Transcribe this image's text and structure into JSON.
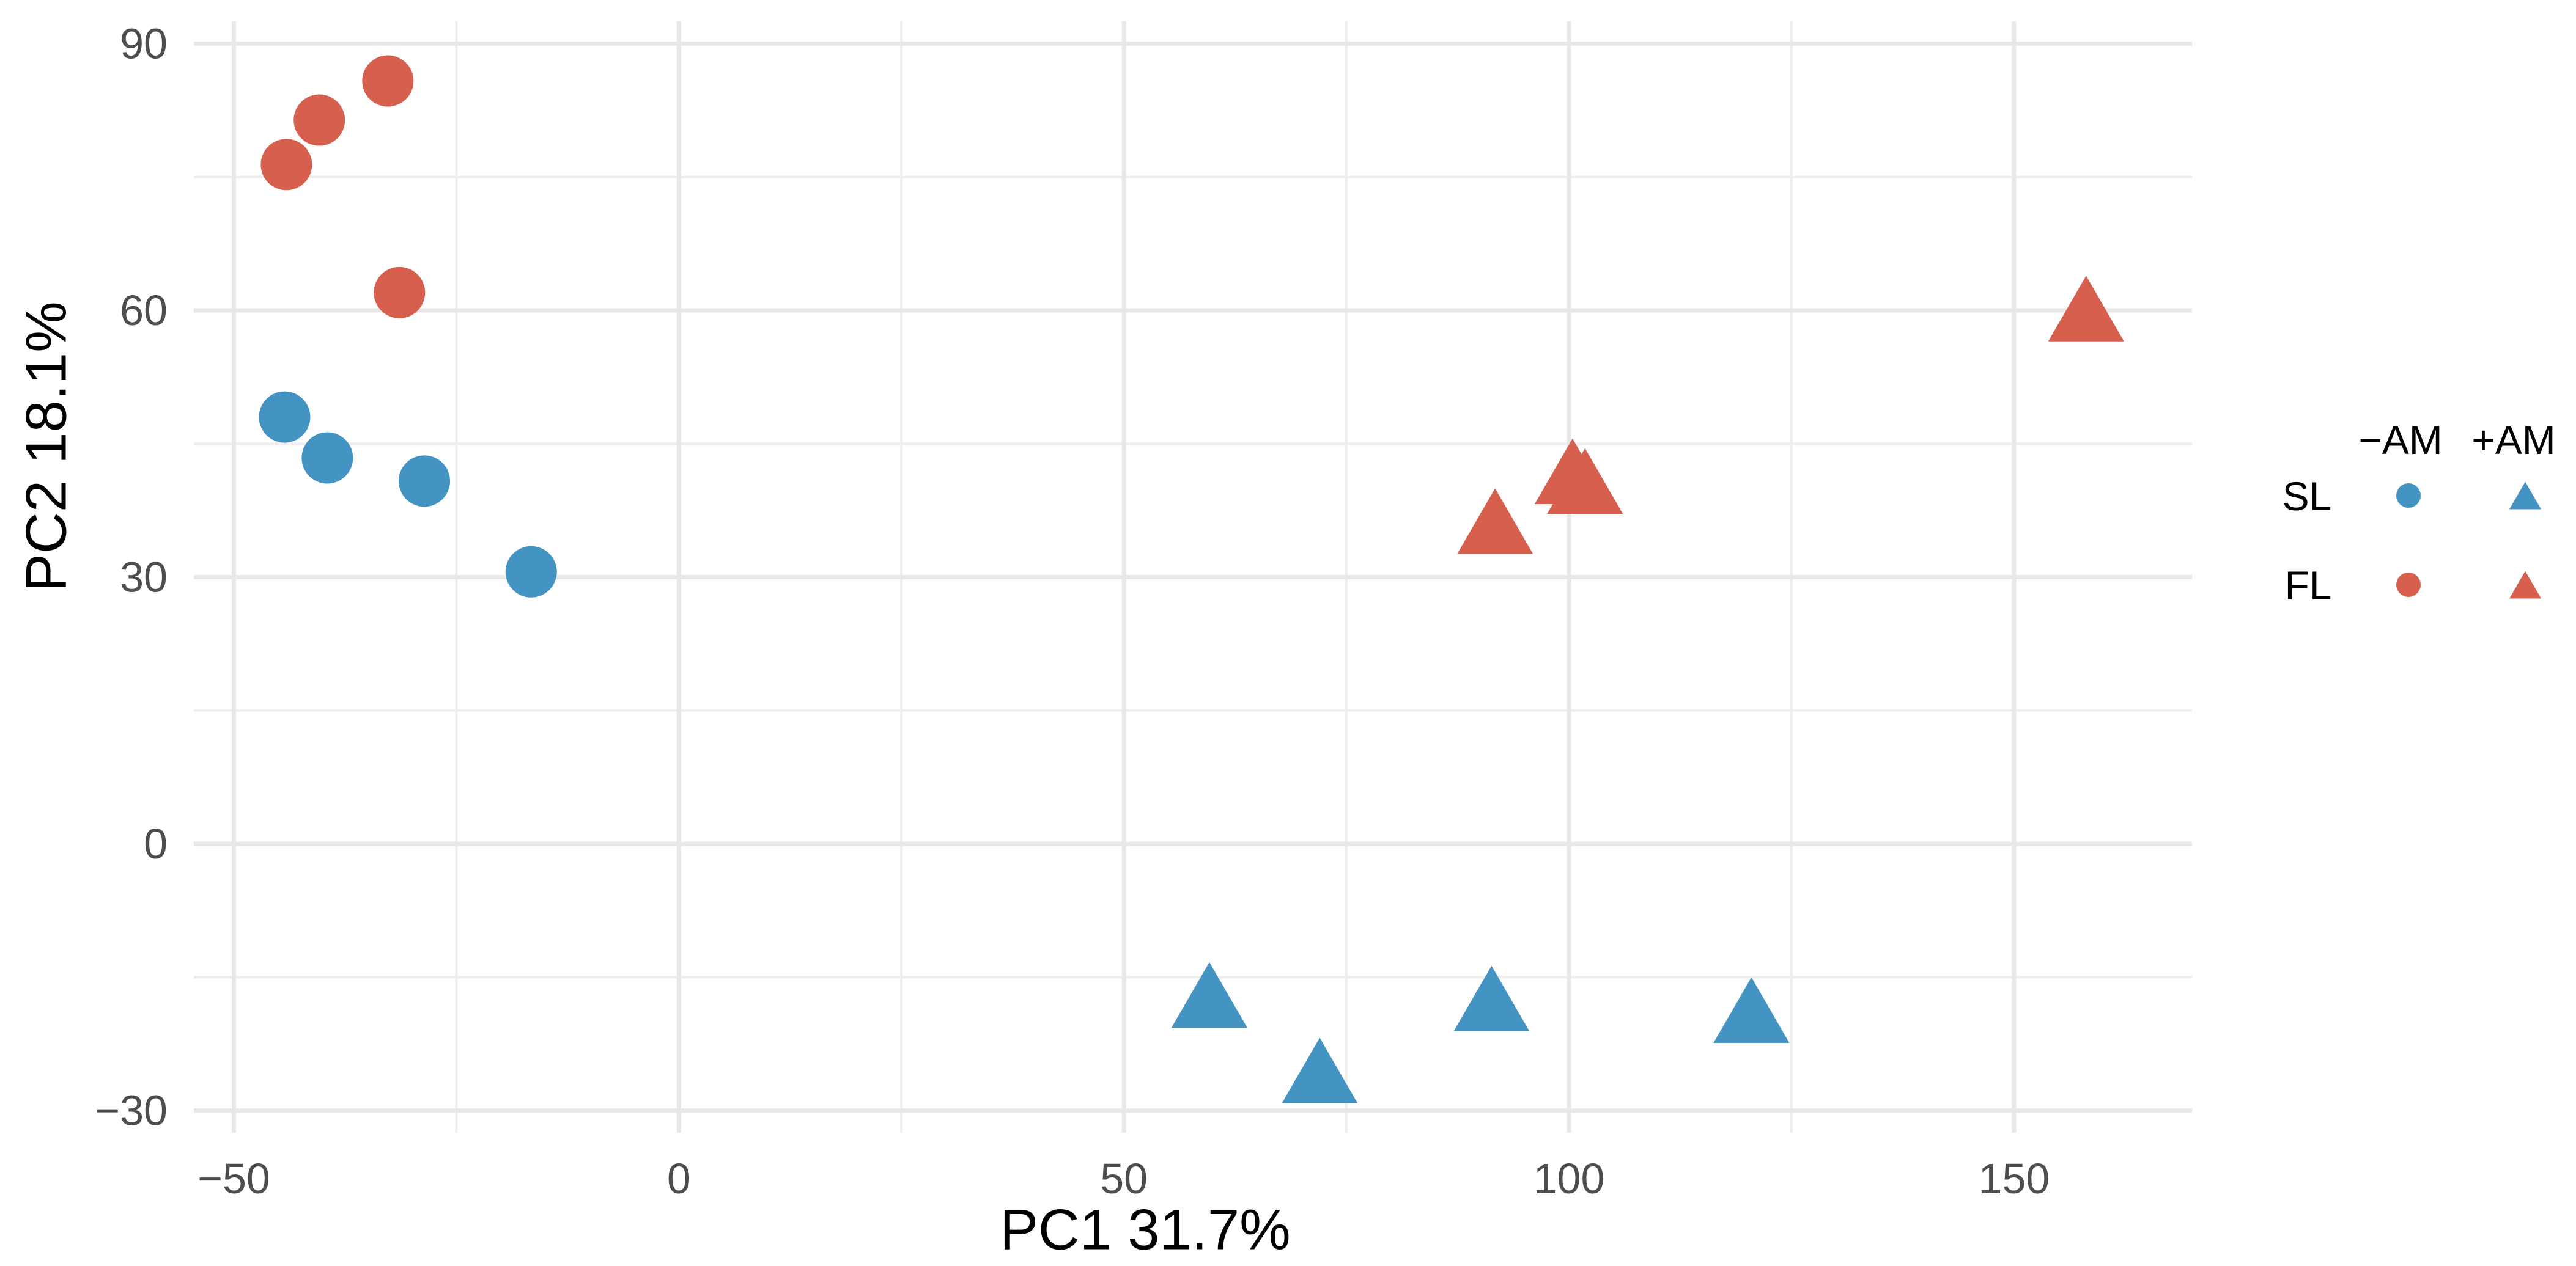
{
  "chart_data": {
    "type": "scatter",
    "xlabel": "PC1 31.7%",
    "ylabel": "PC2 18.1%",
    "xlim": [
      -54.5,
      170
    ],
    "ylim": [
      -32.5,
      92.5
    ],
    "x_ticks": [
      -50,
      0,
      50,
      100,
      150
    ],
    "x_tick_labels": [
      "−50",
      "0",
      "50",
      "100",
      "150"
    ],
    "x_minor_ticks": [
      -25,
      25,
      75,
      125
    ],
    "y_ticks": [
      -30,
      0,
      30,
      60,
      90
    ],
    "y_tick_labels": [
      "−30",
      "0",
      "30",
      "60",
      "90"
    ],
    "y_minor_ticks": [
      -15,
      15,
      45,
      75
    ],
    "grid": true,
    "legend": {
      "position": "right",
      "column_labels": [
        "−AM",
        "+AM"
      ],
      "column_markers": [
        "circle",
        "triangle"
      ],
      "row_labels": [
        "SL",
        "FL"
      ],
      "row_colors": [
        "#4393c3",
        "#d6604d"
      ]
    },
    "series": [
      {
        "color_label": "SL",
        "shape_label": "−AM",
        "marker": "circle",
        "color": "#4393c3",
        "points": [
          [
            -44.3,
            48.0
          ],
          [
            -39.5,
            43.4
          ],
          [
            -28.6,
            40.8
          ],
          [
            -16.6,
            30.6
          ]
        ]
      },
      {
        "color_label": "FL",
        "shape_label": "−AM",
        "marker": "circle",
        "color": "#d6604d",
        "points": [
          [
            -32.7,
            85.8
          ],
          [
            -40.4,
            81.4
          ],
          [
            -44.1,
            76.4
          ],
          [
            -31.4,
            62.0
          ]
        ]
      },
      {
        "color_label": "FL",
        "shape_label": "+AM",
        "marker": "triangle",
        "color": "#d6604d",
        "points": [
          [
            158.1,
            60.2
          ],
          [
            100.4,
            41.9
          ],
          [
            101.8,
            40.8
          ],
          [
            91.7,
            36.3
          ]
        ]
      },
      {
        "color_label": "SL",
        "shape_label": "+AM",
        "marker": "triangle",
        "color": "#4393c3",
        "points": [
          [
            59.6,
            -17.0
          ],
          [
            72.0,
            -25.5
          ],
          [
            91.3,
            -17.4
          ],
          [
            120.5,
            -18.7
          ]
        ]
      }
    ]
  }
}
